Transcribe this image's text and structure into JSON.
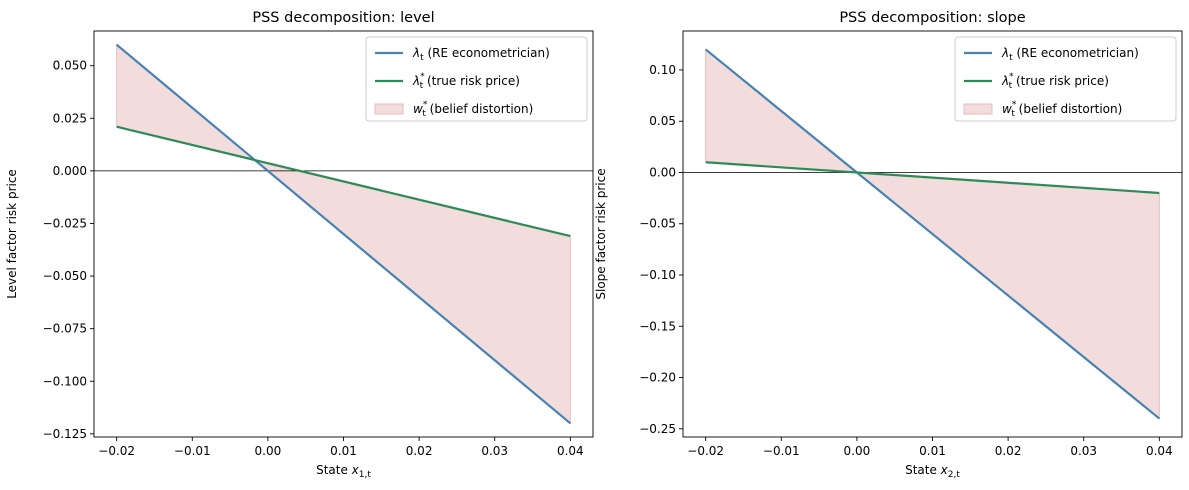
{
  "chart_data": [
    {
      "type": "line",
      "title": "PSS decomposition: level",
      "xlabel_prefix": "State ",
      "xlabel_var": "x",
      "xlabel_sub": "1,t",
      "ylabel": "Level factor risk price",
      "xlim": [
        -0.023,
        0.043
      ],
      "ylim": [
        -0.1265,
        0.0665
      ],
      "xticks": [
        -0.02,
        -0.01,
        0.0,
        0.01,
        0.02,
        0.03,
        0.04
      ],
      "xtick_labels": [
        "−0.02",
        "−0.01",
        "0.00",
        "0.01",
        "0.02",
        "0.03",
        "0.04"
      ],
      "yticks": [
        0.05,
        0.025,
        0.0,
        -0.025,
        -0.05,
        -0.075,
        -0.1,
        -0.125
      ],
      "ytick_labels": [
        "0.050",
        "0.025",
        "0.000",
        "−0.025",
        "−0.050",
        "−0.075",
        "−0.100",
        "−0.125"
      ],
      "hline": 0,
      "legend_position": "top-right",
      "series": [
        {
          "name": "(RE econometrician)",
          "symbol": "λ",
          "sub": "t",
          "sup": "",
          "color": "#4682b4",
          "x": [
            -0.02,
            0.04
          ],
          "y": [
            0.06,
            -0.12
          ]
        },
        {
          "name": "(true risk price)",
          "symbol": "λ",
          "sub": "t",
          "sup": "*",
          "color": "#2e8b57",
          "x": [
            -0.02,
            0.04
          ],
          "y": [
            0.021,
            -0.031
          ]
        }
      ],
      "fill": {
        "name": "(belief distortion)",
        "symbol": "w",
        "sub": "t",
        "sup": "*",
        "color": "#f2dcdc",
        "edge": "#e6bcbc",
        "between": [
          0,
          1
        ]
      }
    },
    {
      "type": "line",
      "title": "PSS decomposition: slope",
      "xlabel_prefix": "State ",
      "xlabel_var": "x",
      "xlabel_sub": "2,t",
      "ylabel": "Slope factor risk price",
      "xlim": [
        -0.023,
        0.043
      ],
      "ylim": [
        -0.258,
        0.138
      ],
      "xticks": [
        -0.02,
        -0.01,
        0.0,
        0.01,
        0.02,
        0.03,
        0.04
      ],
      "xtick_labels": [
        "−0.02",
        "−0.01",
        "0.00",
        "0.01",
        "0.02",
        "0.03",
        "0.04"
      ],
      "yticks": [
        0.1,
        0.05,
        0.0,
        -0.05,
        -0.1,
        -0.15,
        -0.2,
        -0.25
      ],
      "ytick_labels": [
        "0.10",
        "0.05",
        "0.00",
        "−0.05",
        "−0.10",
        "−0.15",
        "−0.20",
        "−0.25"
      ],
      "hline": 0,
      "legend_position": "top-right",
      "series": [
        {
          "name": "(RE econometrician)",
          "symbol": "λ",
          "sub": "t",
          "sup": "",
          "color": "#4682b4",
          "x": [
            -0.02,
            0.04
          ],
          "y": [
            0.12,
            -0.24
          ]
        },
        {
          "name": "(true risk price)",
          "symbol": "λ",
          "sub": "t",
          "sup": "*",
          "color": "#2e8b57",
          "x": [
            -0.02,
            0.04
          ],
          "y": [
            0.01,
            -0.02
          ]
        }
      ],
      "fill": {
        "name": "(belief distortion)",
        "symbol": "w",
        "sub": "t",
        "sup": "*",
        "color": "#f2dcdc",
        "edge": "#e6bcbc",
        "between": [
          0,
          1
        ]
      }
    }
  ]
}
